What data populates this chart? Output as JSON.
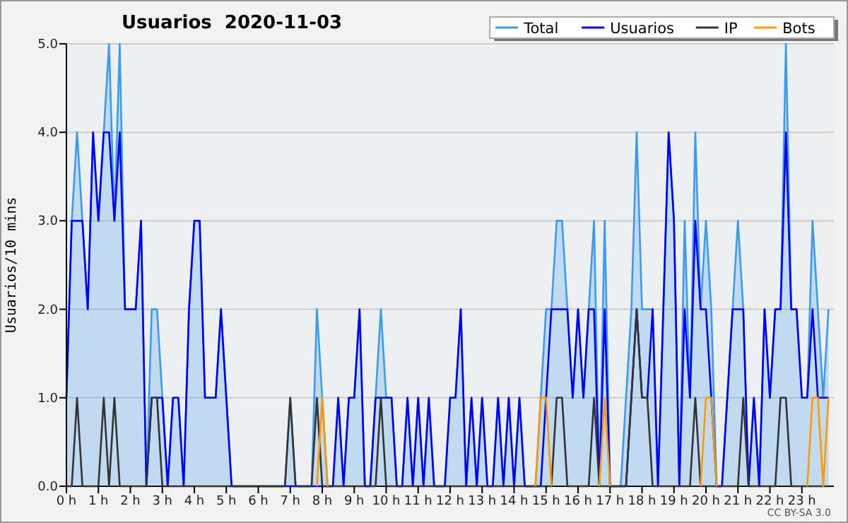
{
  "chart_data": {
    "type": "line",
    "title": "Usuarios  2020-11-03",
    "ylabel": "Usuarios/10 mins",
    "annotations": [
      "CC BY-SA 3.0"
    ],
    "x": [
      0,
      0.167,
      0.333,
      0.5,
      0.667,
      0.833,
      1,
      1.167,
      1.333,
      1.5,
      1.667,
      1.833,
      2,
      2.167,
      2.333,
      2.5,
      2.667,
      2.833,
      3,
      3.167,
      3.333,
      3.5,
      3.667,
      3.833,
      4,
      4.167,
      4.333,
      4.5,
      4.667,
      4.833,
      5,
      5.167,
      5.333,
      5.5,
      5.667,
      5.833,
      6,
      6.167,
      6.333,
      6.5,
      6.667,
      6.833,
      7,
      7.167,
      7.333,
      7.5,
      7.667,
      7.833,
      8,
      8.167,
      8.333,
      8.5,
      8.667,
      8.833,
      9,
      9.167,
      9.333,
      9.5,
      9.667,
      9.833,
      10,
      10.167,
      10.333,
      10.5,
      10.667,
      10.833,
      11,
      11.167,
      11.333,
      11.5,
      11.667,
      11.833,
      12,
      12.167,
      12.333,
      12.5,
      12.667,
      12.833,
      13,
      13.167,
      13.333,
      13.5,
      13.667,
      13.833,
      14,
      14.167,
      14.333,
      14.5,
      14.667,
      14.833,
      15,
      15.167,
      15.333,
      15.5,
      15.667,
      15.833,
      16,
      16.167,
      16.333,
      16.5,
      16.667,
      16.833,
      17,
      17.167,
      17.333,
      17.5,
      17.667,
      17.833,
      18,
      18.167,
      18.333,
      18.5,
      18.667,
      18.833,
      19,
      19.167,
      19.333,
      19.5,
      19.667,
      19.833,
      20,
      20.167,
      20.333,
      20.5,
      20.667,
      20.833,
      21,
      21.167,
      21.333,
      21.5,
      21.667,
      21.833,
      22,
      22.167,
      22.333,
      22.5,
      22.667,
      22.833,
      23,
      23.167,
      23.333,
      23.5,
      23.667,
      23.833
    ],
    "series": [
      {
        "name": "Total",
        "type": "area",
        "color": "#3a9bf0",
        "values": [
          1,
          3,
          4,
          3,
          2,
          4,
          3,
          4,
          5,
          3,
          5,
          2,
          2,
          2,
          3,
          0,
          2,
          2,
          1,
          0,
          1,
          1,
          0,
          2,
          3,
          3,
          1,
          1,
          1,
          2,
          1,
          0,
          0,
          0,
          0,
          0,
          0,
          0,
          0,
          0,
          0,
          0,
          1,
          0,
          0,
          0,
          0,
          2,
          1,
          0,
          0,
          1,
          0,
          1,
          1,
          2,
          0,
          0,
          1,
          2,
          1,
          1,
          0,
          0,
          1,
          0,
          1,
          0,
          1,
          0,
          0,
          0,
          1,
          1,
          2,
          0,
          1,
          0,
          1,
          0,
          0,
          1,
          0,
          1,
          0,
          1,
          0,
          0,
          0,
          1,
          2,
          2,
          3,
          3,
          2,
          1,
          2,
          1,
          2,
          3,
          0,
          3,
          0,
          0,
          0,
          1,
          2,
          4,
          2,
          2,
          2,
          0,
          2,
          4,
          3,
          0,
          3,
          1,
          4,
          2,
          3,
          2,
          0,
          0,
          1,
          2,
          3,
          2,
          0,
          1,
          0,
          2,
          1,
          2,
          2,
          5,
          2,
          2,
          1,
          1,
          3,
          2,
          1,
          2
        ]
      },
      {
        "name": "Usuarios",
        "color": "#0000ff",
        "values": [
          1,
          3,
          3,
          3,
          2,
          4,
          3,
          4,
          4,
          3,
          4,
          2,
          2,
          2,
          3,
          0,
          1,
          1,
          1,
          0,
          1,
          1,
          0,
          2,
          3,
          3,
          1,
          1,
          1,
          2,
          1,
          0,
          0,
          0,
          0,
          0,
          0,
          0,
          0,
          0,
          0,
          0,
          0,
          0,
          0,
          0,
          0,
          0,
          0,
          0,
          0,
          1,
          0,
          1,
          1,
          2,
          0,
          0,
          1,
          1,
          1,
          1,
          0,
          0,
          1,
          0,
          1,
          0,
          1,
          0,
          0,
          0,
          1,
          1,
          2,
          0,
          1,
          0,
          1,
          0,
          0,
          1,
          0,
          1,
          0,
          1,
          0,
          0,
          0,
          0,
          1,
          2,
          2,
          2,
          2,
          1,
          2,
          1,
          2,
          2,
          0,
          2,
          0,
          0,
          0,
          0,
          1,
          2,
          1,
          1,
          2,
          0,
          2,
          4,
          3,
          0,
          2,
          1,
          3,
          2,
          2,
          1,
          0,
          0,
          1,
          2,
          2,
          2,
          0,
          1,
          0,
          2,
          1,
          2,
          2,
          4,
          2,
          2,
          1,
          1,
          2,
          1,
          1,
          1
        ]
      },
      {
        "name": "IP",
        "color": "#333333",
        "values": [
          0,
          0,
          1,
          0,
          0,
          0,
          0,
          1,
          0,
          1,
          0,
          0,
          0,
          0,
          0,
          0,
          1,
          1,
          0,
          0,
          0,
          0,
          0,
          0,
          0,
          0,
          0,
          0,
          0,
          0,
          0,
          0,
          0,
          0,
          0,
          0,
          0,
          0,
          0,
          0,
          0,
          0,
          1,
          0,
          0,
          0,
          0,
          1,
          0,
          0,
          0,
          0,
          0,
          0,
          0,
          0,
          0,
          0,
          0,
          1,
          0,
          0,
          0,
          0,
          0,
          0,
          0,
          0,
          0,
          0,
          0,
          0,
          0,
          0,
          0,
          0,
          0,
          0,
          0,
          0,
          0,
          0,
          0,
          0,
          0,
          0,
          0,
          0,
          0,
          0,
          0,
          0,
          1,
          1,
          0,
          0,
          0,
          0,
          0,
          1,
          0,
          0,
          0,
          0,
          0,
          0,
          1,
          2,
          1,
          1,
          0,
          0,
          0,
          0,
          0,
          0,
          0,
          0,
          1,
          0,
          0,
          0,
          0,
          0,
          0,
          0,
          0,
          1,
          0,
          0,
          0,
          0,
          0,
          0,
          1,
          1,
          0,
          0,
          0,
          0,
          0,
          0,
          0,
          0
        ]
      },
      {
        "name": "Bots",
        "color": "#ff9900",
        "values": [
          null,
          null,
          null,
          null,
          null,
          null,
          null,
          null,
          null,
          null,
          null,
          null,
          null,
          null,
          null,
          null,
          null,
          null,
          null,
          null,
          null,
          null,
          null,
          null,
          null,
          null,
          null,
          null,
          null,
          null,
          null,
          null,
          null,
          null,
          null,
          null,
          null,
          null,
          null,
          null,
          null,
          null,
          null,
          null,
          null,
          null,
          null,
          0,
          1,
          0,
          null,
          null,
          null,
          null,
          null,
          null,
          null,
          null,
          null,
          null,
          null,
          null,
          null,
          null,
          null,
          null,
          null,
          null,
          null,
          null,
          null,
          null,
          null,
          null,
          null,
          null,
          null,
          null,
          null,
          null,
          null,
          null,
          null,
          null,
          null,
          null,
          null,
          null,
          0,
          1,
          1,
          0,
          null,
          null,
          null,
          null,
          null,
          null,
          null,
          null,
          0,
          1,
          0,
          null,
          null,
          null,
          null,
          null,
          null,
          null,
          null,
          null,
          null,
          null,
          null,
          null,
          null,
          null,
          null,
          0,
          1,
          1,
          0,
          null,
          null,
          null,
          null,
          null,
          null,
          null,
          null,
          null,
          null,
          null,
          null,
          null,
          null,
          null,
          null,
          0,
          1,
          1,
          0,
          1
        ]
      }
    ],
    "xlim": [
      0,
      24
    ],
    "xticks": [
      {
        "value": 0,
        "label": "0 h"
      },
      {
        "value": 1,
        "label": "1 h"
      },
      {
        "value": 2,
        "label": "2 h"
      },
      {
        "value": 3,
        "label": "3 h"
      },
      {
        "value": 4,
        "label": "4 h"
      },
      {
        "value": 5,
        "label": "5 h"
      },
      {
        "value": 6,
        "label": "6 h"
      },
      {
        "value": 7,
        "label": "7 h"
      },
      {
        "value": 8,
        "label": "8 h"
      },
      {
        "value": 9,
        "label": "9 h"
      },
      {
        "value": 10,
        "label": "10 h"
      },
      {
        "value": 11,
        "label": "11 h"
      },
      {
        "value": 12,
        "label": "12 h"
      },
      {
        "value": 13,
        "label": "13 h"
      },
      {
        "value": 14,
        "label": "14 h"
      },
      {
        "value": 15,
        "label": "15 h"
      },
      {
        "value": 16,
        "label": "16 h"
      },
      {
        "value": 17,
        "label": "17 h"
      },
      {
        "value": 18,
        "label": "18 h"
      },
      {
        "value": 19,
        "label": "19 h"
      },
      {
        "value": 20,
        "label": "20 h"
      },
      {
        "value": 21,
        "label": "21 h"
      },
      {
        "value": 22,
        "label": "22 h"
      },
      {
        "value": 23,
        "label": "23 h"
      }
    ],
    "ylim": [
      0,
      5
    ],
    "yticks": [
      {
        "value": 0,
        "label": "0.0"
      },
      {
        "value": 1,
        "label": "1.0"
      },
      {
        "value": 2,
        "label": "2.0"
      },
      {
        "value": 3,
        "label": "3.0"
      },
      {
        "value": 4,
        "label": "4.0"
      },
      {
        "value": 5,
        "label": "5.0"
      }
    ],
    "grid": "y",
    "legend": "top right",
    "marker": "none",
    "line_style": "solid"
  }
}
